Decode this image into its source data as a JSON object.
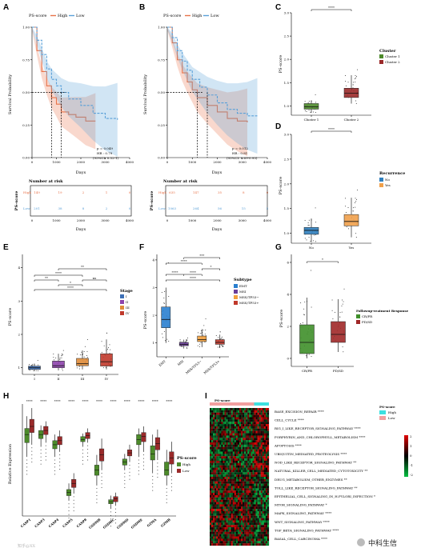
{
  "panels": [
    "A",
    "B",
    "C",
    "D",
    "E",
    "F",
    "G",
    "H",
    "I"
  ],
  "colors": {
    "high": "#e8734a",
    "low": "#5aa0d8",
    "cluster1": "#4c8a2a",
    "cluster2": "#9a2a2a",
    "rec_no": "#2f7fbf",
    "rec_yes": "#f0a04b",
    "stage1": "#3d6fb6",
    "stage2": "#8e44ad",
    "stage3": "#e08c3a",
    "stage4": "#c0392b",
    "emt": "#2a7fcf",
    "msi": "#6a3d9a",
    "tp53neg": "#f2a03d",
    "tp53pos": "#c0392b",
    "crpr": "#3f8f2a",
    "pdsd": "#a02828",
    "heat_red": "#d71f1f",
    "heat_green": "#17a045",
    "heat_black": "#000000"
  },
  "chart_data": [
    {
      "id": "A",
      "type": "line",
      "legend_title": "PS-score",
      "legend": [
        "High",
        "Low"
      ],
      "xlabel": "Days",
      "ylabel": "Survival Probability",
      "xticks": [
        "0",
        "1000",
        "2000",
        "3000",
        "4000"
      ],
      "yticks": [
        "0.00",
        "0.25",
        "0.50",
        "0.75",
        "1.00"
      ],
      "series": [
        {
          "name": "High",
          "x": [
            0,
            200,
            400,
            600,
            800,
            1000,
            1200,
            1500,
            1800,
            2200,
            2600
          ],
          "y": [
            1.0,
            0.82,
            0.66,
            0.55,
            0.46,
            0.41,
            0.35,
            0.33,
            0.31,
            0.28,
            0.28
          ]
        },
        {
          "name": "Low",
          "x": [
            0,
            200,
            400,
            600,
            800,
            1000,
            1200,
            1500,
            2000,
            2500,
            3000,
            3500
          ],
          "y": [
            1.0,
            0.9,
            0.79,
            0.68,
            0.6,
            0.55,
            0.5,
            0.45,
            0.4,
            0.34,
            0.3,
            0.29
          ]
        }
      ],
      "stats": [
        "p = 0.049",
        "HR : 0.79",
        "(95%CI: 0.52-1)"
      ],
      "risk_title": "Number at risk",
      "risk_ylabel": "PS-score",
      "risk_rows": [
        {
          "name": "High",
          "values": [
            "149",
            "19",
            "2",
            "1",
            "0"
          ]
        },
        {
          "name": "Low",
          "values": [
            "201",
            "38",
            "8",
            "2",
            "0"
          ]
        }
      ]
    },
    {
      "id": "B",
      "type": "line",
      "legend_title": "PS-score",
      "legend": [
        "High",
        "Low"
      ],
      "xlabel": "Days",
      "ylabel": "Survival Probability",
      "xticks": [
        "0",
        "1000",
        "2000",
        "3000",
        "4000"
      ],
      "yticks": [
        "0.00",
        "0.25",
        "0.50",
        "0.75",
        "1.00"
      ],
      "series": [
        {
          "name": "High",
          "x": [
            0,
            200,
            400,
            600,
            800,
            1000,
            1200,
            1600,
            2000,
            2400,
            2800,
            3200
          ],
          "y": [
            1.0,
            0.88,
            0.75,
            0.65,
            0.58,
            0.52,
            0.46,
            0.4,
            0.35,
            0.3,
            0.28,
            0.27
          ]
        },
        {
          "name": "Low",
          "x": [
            0,
            200,
            400,
            600,
            800,
            1000,
            1300,
            1600,
            2000,
            2400,
            2800,
            3200,
            3600
          ],
          "y": [
            1.0,
            0.92,
            0.82,
            0.74,
            0.67,
            0.6,
            0.54,
            0.48,
            0.42,
            0.37,
            0.34,
            0.32,
            0.32
          ]
        }
      ],
      "stats": [
        "p = 0.012",
        "HR : 0.81",
        "(95%CI: 0.69-0.95)"
      ],
      "risk_title": "Number at risk",
      "risk_ylabel": "PS-score",
      "risk_rows": [
        {
          "name": "High",
          "values": [
            "635",
            "147",
            "35",
            "8",
            "0"
          ]
        },
        {
          "name": "Low",
          "values": [
            "1063",
            "264",
            "56",
            "15",
            "5"
          ]
        }
      ]
    },
    {
      "id": "C",
      "type": "box",
      "ylabel": "PS-score",
      "legend_title": "Cluster",
      "categories": [
        "Cluster 1",
        "Cluster 2"
      ],
      "legend": [
        "Cluster 1",
        "Cluster 2"
      ],
      "yticks": [
        "1.0",
        "1.5",
        "2.0",
        "2.5",
        "3.0"
      ],
      "ylim": [
        0.8,
        3.0
      ],
      "boxes": [
        [
          0.85,
          0.93,
          0.98,
          1.05,
          1.12
        ],
        [
          1.05,
          1.18,
          1.27,
          1.38,
          1.66
        ]
      ],
      "signif": [
        "****"
      ]
    },
    {
      "id": "D",
      "type": "box",
      "ylabel": "PS-score",
      "xlabel": "",
      "legend_title": "Recurrence",
      "categories": [
        "No",
        "Yes"
      ],
      "legend": [
        "No",
        "Yes"
      ],
      "yticks": [
        "1.0",
        "1.5",
        "2.0",
        "2.5",
        "3.0"
      ],
      "ylim": [
        0.8,
        3.0
      ],
      "boxes": [
        [
          0.82,
          0.98,
          1.06,
          1.12,
          1.3
        ],
        [
          0.92,
          1.15,
          1.24,
          1.38,
          1.72
        ]
      ],
      "signif": [
        "****"
      ]
    },
    {
      "id": "E",
      "type": "box",
      "ylabel": "PS-score",
      "legend_title": "Stage",
      "categories": [
        "I",
        "II",
        "III",
        "IV"
      ],
      "legend": [
        "I",
        "II",
        "III",
        "IV"
      ],
      "yticks": [
        "1",
        "2",
        "3",
        "4"
      ],
      "ylim": [
        0.8,
        4.4
      ],
      "boxes": [
        [
          0.9,
          0.95,
          1.0,
          1.05,
          1.12
        ],
        [
          0.92,
          1.0,
          1.06,
          1.2,
          1.42
        ],
        [
          0.95,
          1.06,
          1.12,
          1.28,
          1.52
        ],
        [
          0.95,
          1.05,
          1.18,
          1.42,
          1.85
        ]
      ],
      "signif": [
        "**",
        "****",
        "*",
        "ns",
        "****",
        "**"
      ]
    },
    {
      "id": "F",
      "type": "box",
      "ylabel": "PS-score",
      "legend_title": "Subtype",
      "categories": [
        "EMT",
        "MSI",
        "MSS/TP53−",
        "MSS/TP53+"
      ],
      "legend": [
        "EMT",
        "MSI",
        "MSS/TP53−",
        "MSS/TP53+"
      ],
      "yticks": [
        "1",
        "2",
        "3",
        "4"
      ],
      "ylim": [
        0.5,
        4.2
      ],
      "boxes": [
        [
          1.0,
          1.55,
          1.85,
          2.3,
          3.0
        ],
        [
          0.8,
          0.9,
          0.95,
          1.02,
          1.12
        ],
        [
          0.85,
          1.05,
          1.12,
          1.25,
          1.5
        ],
        [
          0.82,
          0.95,
          1.02,
          1.12,
          1.3
        ]
      ],
      "signif": [
        "***",
        "****",
        "*",
        "****",
        "****",
        "****"
      ]
    },
    {
      "id": "G",
      "type": "box",
      "ylabel": "PS-score",
      "legend_title": "Followup-reatment Response",
      "categories": [
        "CR/PR",
        "PD/SD"
      ],
      "legend": [
        "CR/PR",
        "PD/SD"
      ],
      "yticks": [
        "0",
        "2",
        "4",
        "6"
      ],
      "ylim": [
        -0.5,
        6.5
      ],
      "boxes": [
        [
          0.0,
          0.3,
          1.0,
          2.1,
          3.8
        ],
        [
          0.4,
          1.0,
          1.5,
          2.3,
          3.7
        ]
      ],
      "signif": [
        "*"
      ]
    },
    {
      "id": "H",
      "type": "box",
      "ylabel": "Relative Expression",
      "legend_title": "PS-score",
      "legend": [
        "High",
        "Low"
      ],
      "categories": [
        "CASP1",
        "CASP3",
        "CASP4",
        "CASP5",
        "CASP8",
        "GSDMB",
        "GSDMC",
        "GSDMD",
        "GSDME",
        "GZMA",
        "GZMB"
      ],
      "signif": [
        "****",
        "****",
        "****",
        "****",
        "****",
        "****",
        "****",
        "****",
        "****",
        "****",
        "****"
      ],
      "high": [
        [
          4.8,
          6.2,
          7.0,
          7.6,
          8.8
        ],
        [
          5.8,
          6.6,
          7.0,
          7.4,
          7.9
        ],
        [
          4.8,
          5.6,
          6.0,
          6.4,
          7.0
        ],
        [
          0.5,
          1.0,
          1.3,
          1.6,
          2.2
        ],
        [
          5.8,
          6.3,
          6.5,
          6.8,
          7.1
        ],
        [
          2.0,
          3.0,
          3.5,
          4.0,
          5.0
        ],
        [
          -0.3,
          0.2,
          0.4,
          0.6,
          1.0
        ],
        [
          3.5,
          4.0,
          4.3,
          4.6,
          5.1
        ],
        [
          4.8,
          6.0,
          6.5,
          7.0,
          7.6
        ],
        [
          3.2,
          4.5,
          5.1,
          5.9,
          7.0
        ],
        [
          2.0,
          3.0,
          3.5,
          4.3,
          5.5
        ]
      ],
      "low": [
        [
          6.0,
          7.2,
          7.8,
          8.5,
          9.6
        ],
        [
          6.2,
          7.0,
          7.4,
          7.8,
          8.3
        ],
        [
          5.3,
          6.0,
          6.4,
          6.8,
          7.4
        ],
        [
          1.2,
          1.8,
          2.2,
          2.6,
          3.2
        ],
        [
          6.2,
          6.6,
          6.9,
          7.2,
          7.6
        ],
        [
          3.5,
          4.4,
          5.0,
          5.6,
          6.6
        ],
        [
          0.0,
          0.4,
          0.7,
          0.9,
          1.3
        ],
        [
          4.3,
          4.9,
          5.2,
          5.5,
          6.0
        ],
        [
          5.3,
          6.3,
          6.8,
          7.2,
          7.8
        ],
        [
          4.5,
          5.5,
          6.1,
          6.7,
          7.5
        ],
        [
          3.2,
          4.1,
          4.7,
          5.3,
          6.3
        ]
      ]
    },
    {
      "id": "I",
      "type": "heatmap",
      "annotation_title": "PS-score",
      "legend": [
        "High",
        "Low"
      ],
      "scale_ticks": [
        "2",
        "1",
        "0",
        "-1",
        "-2"
      ],
      "rows": [
        "BASE_EXCISION_REPAIR ****",
        "CELL_CYCLE ****",
        "RIG_I_LIKE_RECEPTOR_SIGNALING_PATHWAY ****",
        "PORPHYRIN_AND_CHLOROPHYLL_METABOLISM ****",
        "APOPTOSIS ****",
        "UBIQUITIN_MEDIATED_PROTEOLYSIS ****",
        "NOD_LIKE_RECEPTOR_SIGNALING_PATHWAY **",
        "NATURAL_KILLER_CELL_MEDIATED_CYTOTOXICITY **",
        "DRUG_METABOLISM_OTHER_ENZYMES **",
        "TOLL_LIKE_RECEPTOR_SIGNALING_PATHWAY **",
        "EPITHELIAL_CELL_SIGNALING_IN_H.PYLORI_INFECTION *",
        "MTOR_SIGNALING_PATHWAY *",
        "MAPK_SIGNALING_PATHWAY ****",
        "WNT_SIGNALING_PATHWAY ****",
        "TGF_BETA_SIGNALING_PATHWAY ****",
        "BASAL_CELL_CARCINOMA ****"
      ]
    }
  ],
  "watermark_right": "中科生信",
  "watermark_left": "知乎@XX"
}
